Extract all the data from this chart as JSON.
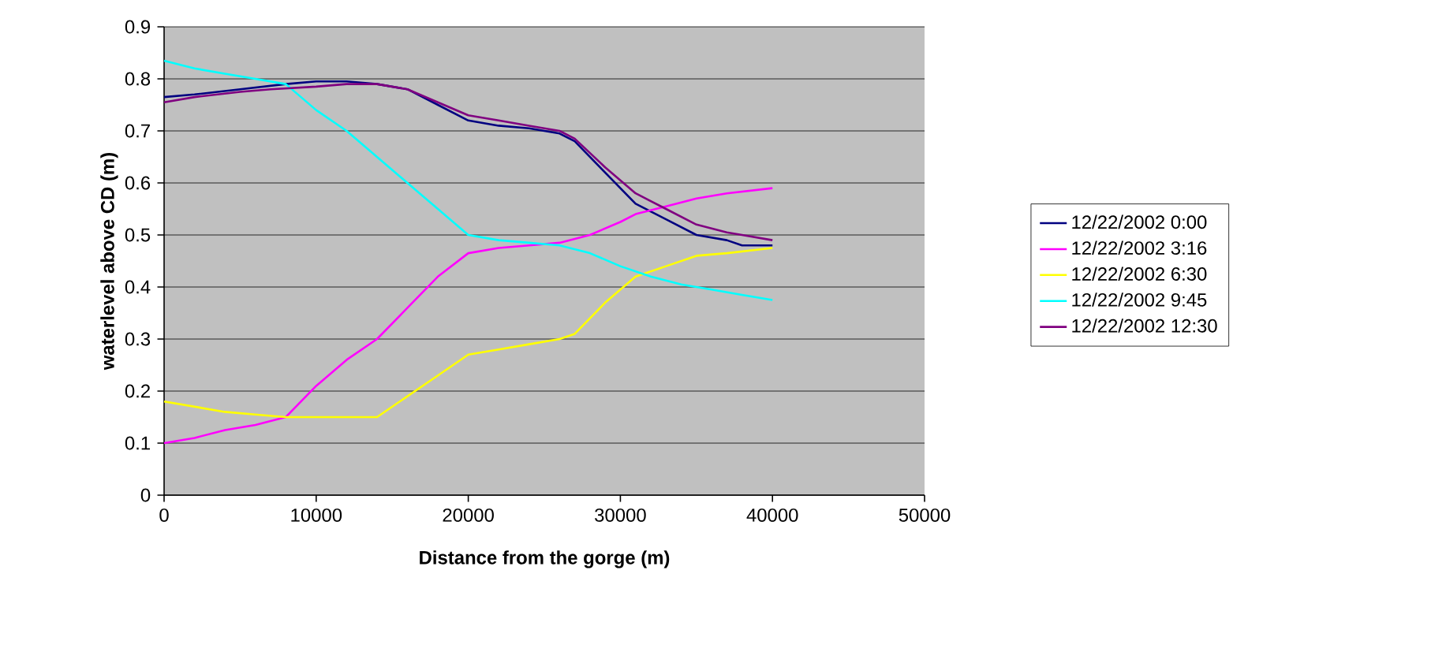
{
  "chart_data": {
    "type": "line",
    "xlabel": "Distance from the gorge (m)",
    "ylabel": "waterlevel above CD (m)",
    "xlim": [
      0,
      50000
    ],
    "xticks": [
      0,
      10000,
      20000,
      30000,
      40000,
      50000
    ],
    "ylim": [
      0,
      0.9
    ],
    "yticks": [
      0,
      0.1,
      0.2,
      0.3,
      0.4,
      0.5,
      0.6,
      0.7,
      0.8,
      0.9
    ],
    "grid": "y",
    "legend": "right",
    "marker": "none",
    "line_style": "solid",
    "series": [
      {
        "name": "12/22/2002 0:00",
        "color": "#000080",
        "x": [
          0,
          2000,
          5000,
          8000,
          10000,
          12000,
          14000,
          16000,
          18000,
          20000,
          22000,
          24000,
          26000,
          27000,
          29000,
          31000,
          33000,
          35000,
          37000,
          38000,
          40000
        ],
        "values": [
          0.765,
          0.77,
          0.78,
          0.79,
          0.795,
          0.795,
          0.79,
          0.78,
          0.75,
          0.72,
          0.71,
          0.705,
          0.695,
          0.68,
          0.62,
          0.56,
          0.53,
          0.5,
          0.49,
          0.48,
          0.48
        ]
      },
      {
        "name": "12/22/2002 3:16",
        "color": "#ff00ff",
        "x": [
          0,
          2000,
          4000,
          6000,
          8000,
          9000,
          10000,
          12000,
          14000,
          16000,
          17000,
          18000,
          20000,
          22000,
          24000,
          26000,
          28000,
          30000,
          31000,
          33000,
          35000,
          37000,
          40000
        ],
        "values": [
          0.1,
          0.11,
          0.125,
          0.135,
          0.15,
          0.18,
          0.21,
          0.26,
          0.3,
          0.36,
          0.39,
          0.42,
          0.465,
          0.475,
          0.48,
          0.485,
          0.5,
          0.525,
          0.54,
          0.555,
          0.57,
          0.58,
          0.59
        ]
      },
      {
        "name": "12/22/2002 6:30",
        "color": "#ffff00",
        "x": [
          0,
          2000,
          4000,
          6000,
          8000,
          10000,
          12000,
          14000,
          16000,
          18000,
          20000,
          22000,
          24000,
          26000,
          27000,
          29000,
          31000,
          33000,
          35000,
          37000,
          40000
        ],
        "values": [
          0.18,
          0.17,
          0.16,
          0.155,
          0.15,
          0.15,
          0.15,
          0.15,
          0.19,
          0.23,
          0.27,
          0.28,
          0.29,
          0.3,
          0.31,
          0.37,
          0.42,
          0.44,
          0.46,
          0.465,
          0.475
        ]
      },
      {
        "name": "12/22/2002 9:45",
        "color": "#00ffff",
        "x": [
          0,
          2000,
          4000,
          6000,
          8000,
          10000,
          12000,
          14000,
          16000,
          18000,
          20000,
          22000,
          24000,
          26000,
          28000,
          30000,
          32000,
          34000,
          36000,
          38000,
          40000
        ],
        "values": [
          0.835,
          0.82,
          0.81,
          0.8,
          0.79,
          0.74,
          0.7,
          0.65,
          0.6,
          0.55,
          0.5,
          0.49,
          0.485,
          0.48,
          0.465,
          0.44,
          0.42,
          0.405,
          0.395,
          0.385,
          0.375
        ]
      },
      {
        "name": "12/22/2002 12:30",
        "color": "#800080",
        "x": [
          0,
          2000,
          5000,
          7000,
          10000,
          12000,
          14000,
          16000,
          18000,
          20000,
          22000,
          24000,
          26000,
          27000,
          29000,
          31000,
          33000,
          35000,
          37000,
          38000,
          40000
        ],
        "values": [
          0.755,
          0.765,
          0.775,
          0.78,
          0.785,
          0.79,
          0.79,
          0.78,
          0.755,
          0.73,
          0.72,
          0.71,
          0.7,
          0.685,
          0.63,
          0.58,
          0.55,
          0.52,
          0.505,
          0.5,
          0.49
        ]
      }
    ]
  }
}
